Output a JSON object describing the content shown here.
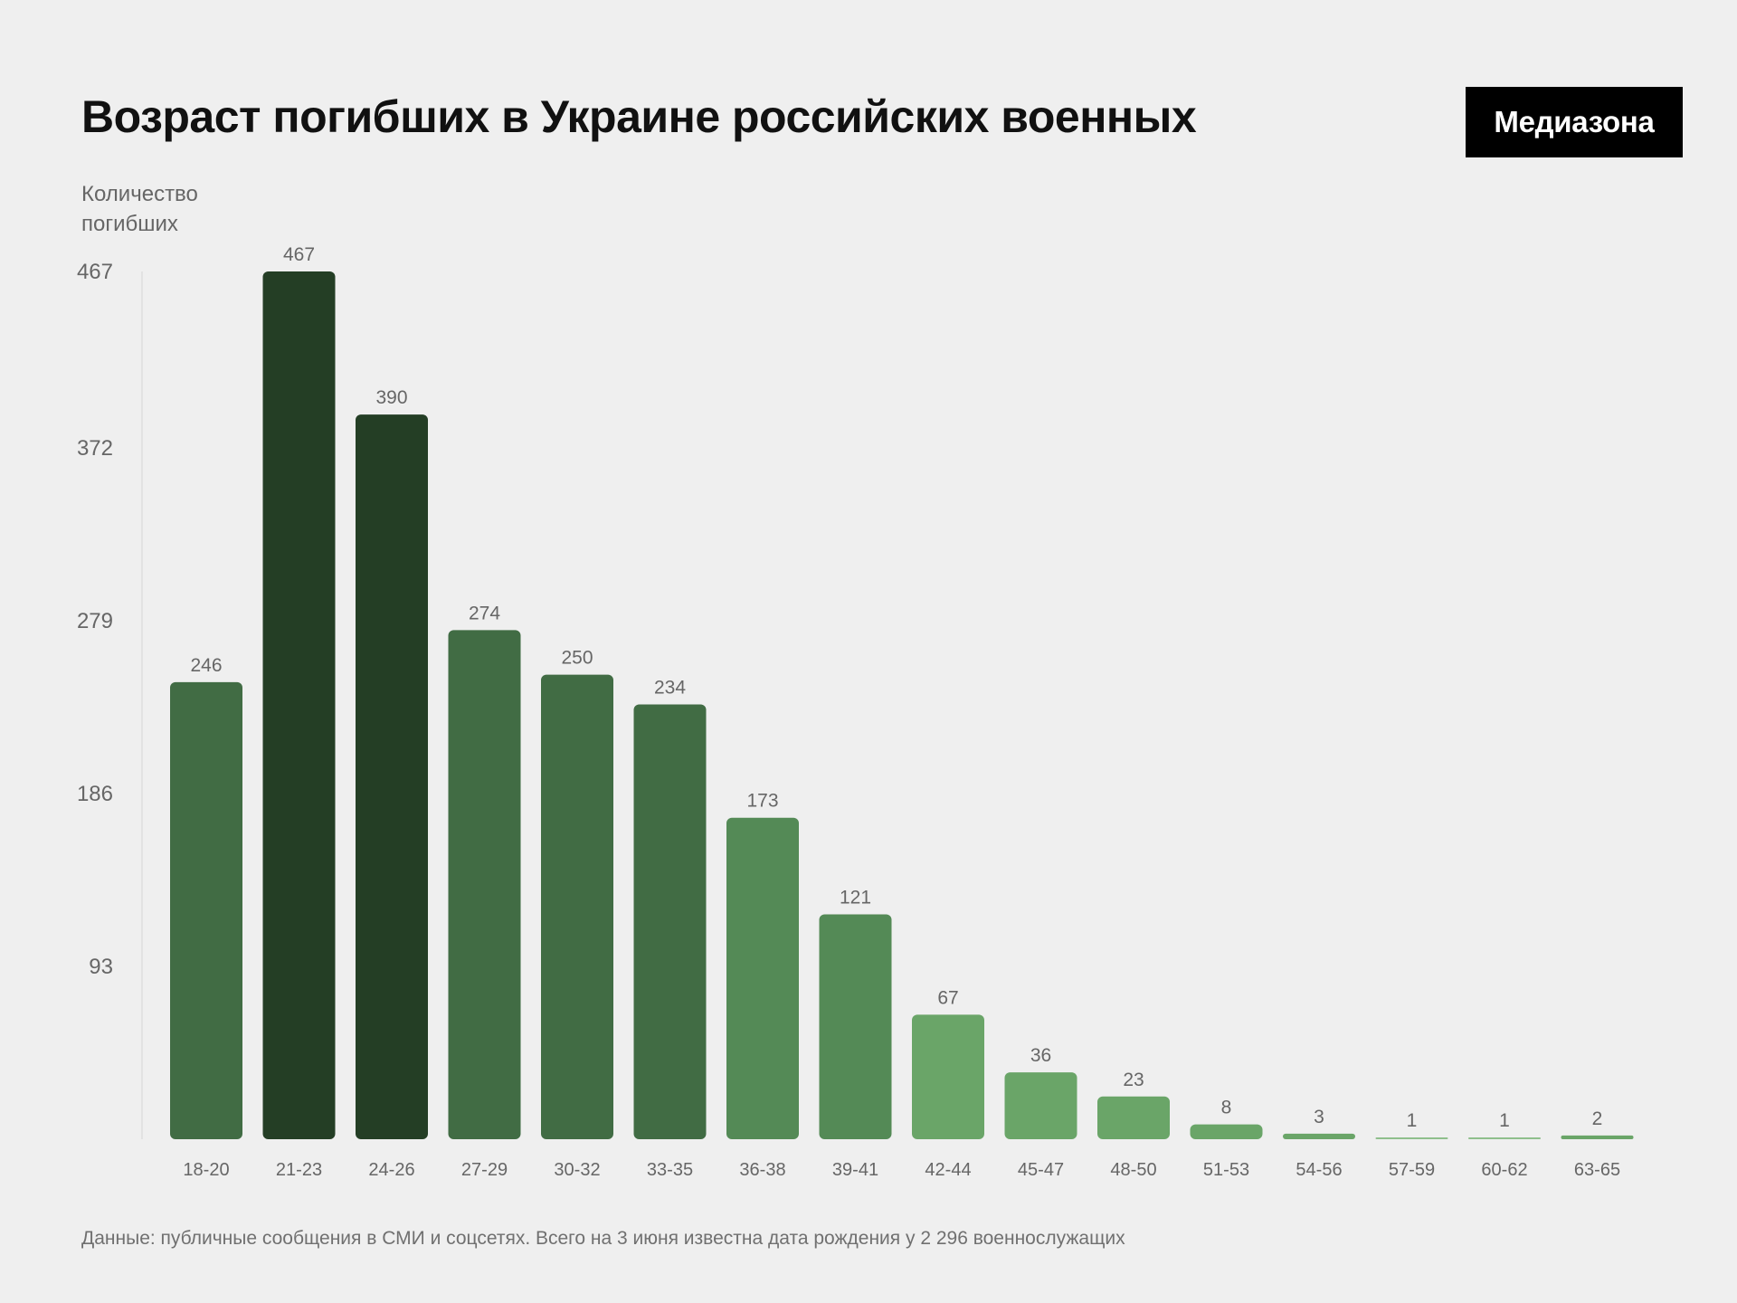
{
  "title": "Возраст погибших в Украине российских военных",
  "brand": {
    "logo_text": "Медиазона"
  },
  "source": "Данные: публичные сообщения в СМИ и соцсетях. Всего на 3 июня известна дата рождения у 2 296 военнослужащих",
  "chart_data": {
    "type": "bar",
    "title": "Возраст погибших в Украине российских военных",
    "ylabel": "Количество погибших",
    "xlabel": "",
    "ylim": [
      0,
      467
    ],
    "yticks": [
      93,
      186,
      279,
      372,
      467
    ],
    "grid": false,
    "categories": [
      "18-20",
      "21-23",
      "24-26",
      "27-29",
      "30-32",
      "33-35",
      "36-38",
      "39-41",
      "42-44",
      "45-47",
      "48-50",
      "51-53",
      "54-56",
      "57-59",
      "60-62",
      "63-65"
    ],
    "values": [
      246,
      467,
      390,
      274,
      250,
      234,
      173,
      121,
      67,
      36,
      23,
      8,
      3,
      1,
      1,
      2
    ],
    "colors": [
      "#416c44",
      "#243e25",
      "#243e25",
      "#416c44",
      "#416c44",
      "#416c44",
      "#548a56",
      "#548a56",
      "#6aa568",
      "#6aa568",
      "#6aa568",
      "#6aa568",
      "#6aa568",
      "#8fbf8c",
      "#8fbf8c",
      "#6aa568"
    ]
  }
}
